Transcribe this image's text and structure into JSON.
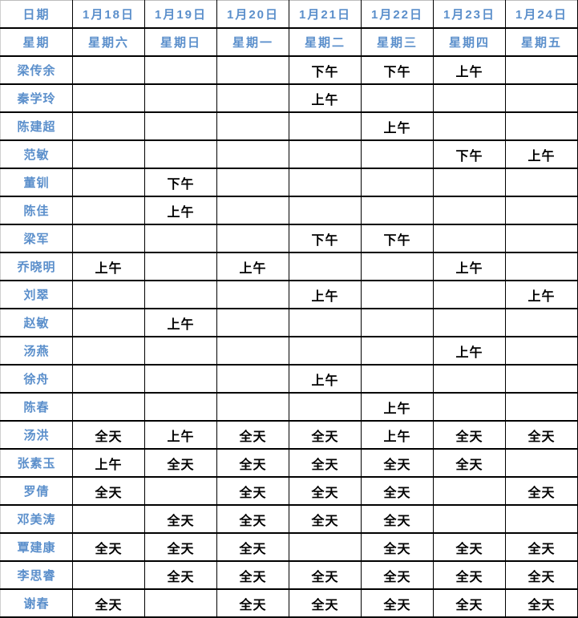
{
  "colors": {
    "header_text": "#5B8FCB",
    "name_text": "#5B8FCB",
    "cell_text": "#000000",
    "border": "#000000",
    "background": "#FFFFFF"
  },
  "table": {
    "corner_labels": {
      "date": "日期",
      "week": "星期"
    },
    "dates": [
      "1月18日",
      "1月19日",
      "1月20日",
      "1月21日",
      "1月22日",
      "1月23日",
      "1月24日"
    ],
    "weekdays": [
      "星期六",
      "星期日",
      "星期一",
      "星期二",
      "星期三",
      "星期四",
      "星期五"
    ],
    "shift_values": {
      "morning": "上午",
      "afternoon": "下午",
      "all_day": "全天"
    },
    "rows": [
      {
        "name": "梁传余",
        "cells": [
          "",
          "",
          "",
          "下午",
          "下午",
          "上午",
          ""
        ]
      },
      {
        "name": "秦学玲",
        "cells": [
          "",
          "",
          "",
          "上午",
          "",
          "",
          ""
        ]
      },
      {
        "name": "陈建超",
        "cells": [
          "",
          "",
          "",
          "",
          "上午",
          "",
          ""
        ]
      },
      {
        "name": "范敏",
        "cells": [
          "",
          "",
          "",
          "",
          "",
          "下午",
          "上午"
        ]
      },
      {
        "name": "董钏",
        "cells": [
          "",
          "下午",
          "",
          "",
          "",
          "",
          ""
        ]
      },
      {
        "name": "陈佳",
        "cells": [
          "",
          "上午",
          "",
          "",
          "",
          "",
          ""
        ]
      },
      {
        "name": "梁军",
        "cells": [
          "",
          "",
          "",
          "下午",
          "下午",
          "",
          ""
        ]
      },
      {
        "name": "乔晓明",
        "cells": [
          "上午",
          "",
          "上午",
          "",
          "",
          "上午",
          ""
        ]
      },
      {
        "name": "刘翠",
        "cells": [
          "",
          "",
          "",
          "上午",
          "",
          "",
          "上午"
        ]
      },
      {
        "name": "赵敏",
        "cells": [
          "",
          "上午",
          "",
          "",
          "",
          "",
          ""
        ]
      },
      {
        "name": "汤燕",
        "cells": [
          "",
          "",
          "",
          "",
          "",
          "上午",
          ""
        ]
      },
      {
        "name": "徐舟",
        "cells": [
          "",
          "",
          "",
          "上午",
          "",
          "",
          ""
        ]
      },
      {
        "name": "陈春",
        "cells": [
          "",
          "",
          "",
          "",
          "上午",
          "",
          ""
        ]
      },
      {
        "name": "汤洪",
        "cells": [
          "全天",
          "上午",
          "全天",
          "全天",
          "上午",
          "全天",
          "全天"
        ]
      },
      {
        "name": "张素玉",
        "cells": [
          "上午",
          "全天",
          "全天",
          "全天",
          "全天",
          "全天",
          ""
        ]
      },
      {
        "name": "罗倩",
        "cells": [
          "全天",
          "",
          "全天",
          "全天",
          "全天",
          "",
          "全天"
        ]
      },
      {
        "name": "邓美涛",
        "cells": [
          "",
          "全天",
          "全天",
          "全天",
          "全天",
          "",
          ""
        ]
      },
      {
        "name": "覃建康",
        "cells": [
          "全天",
          "全天",
          "全天",
          "",
          "全天",
          "全天",
          "全天"
        ]
      },
      {
        "name": "李思睿",
        "cells": [
          "",
          "全天",
          "全天",
          "全天",
          "全天",
          "全天",
          "全天"
        ]
      },
      {
        "name": "谢春",
        "cells": [
          "全天",
          "",
          "全天",
          "全天",
          "全天",
          "全天",
          "全天"
        ]
      }
    ]
  }
}
